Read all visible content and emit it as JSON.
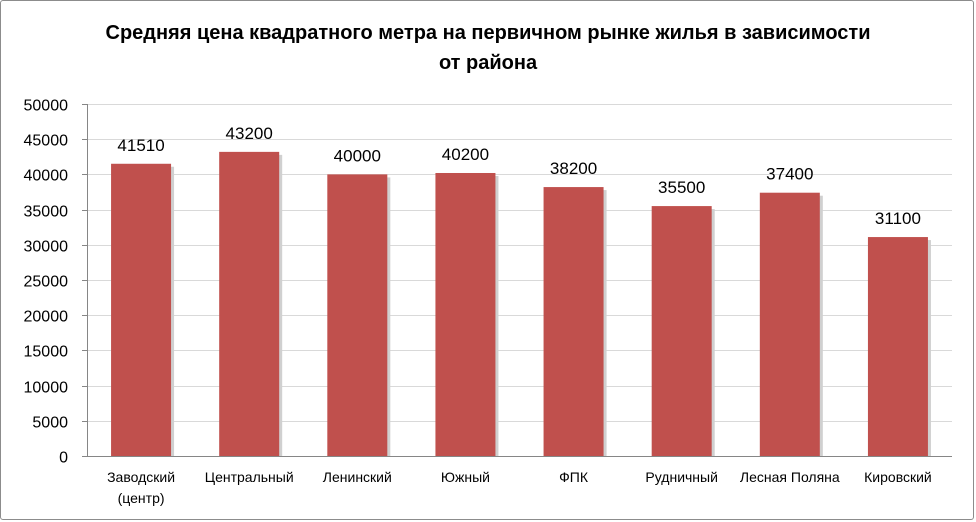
{
  "chart_data": {
    "type": "bar",
    "title": "Средняя цена квадратного метра на первичном рынке жилья в зависимости от района",
    "categories": [
      [
        "Заводский",
        "(центр)"
      ],
      [
        "Центральный"
      ],
      [
        "Ленинский"
      ],
      [
        "Южный"
      ],
      [
        "ФПК"
      ],
      [
        "Рудничный"
      ],
      [
        "Лесная Поляна"
      ],
      [
        "Кировский"
      ]
    ],
    "values": [
      41510,
      43200,
      40000,
      40200,
      38200,
      35500,
      37400,
      31100
    ],
    "ylim": [
      0,
      50000
    ],
    "yticks": [
      "0",
      "5000",
      "10000",
      "15000",
      "20000",
      "25000",
      "30000",
      "35000",
      "40000",
      "45000",
      "50000"
    ],
    "xlabel": "",
    "ylabel": "",
    "grid": true,
    "bar_color": "#c0504d",
    "data_labels": true
  }
}
